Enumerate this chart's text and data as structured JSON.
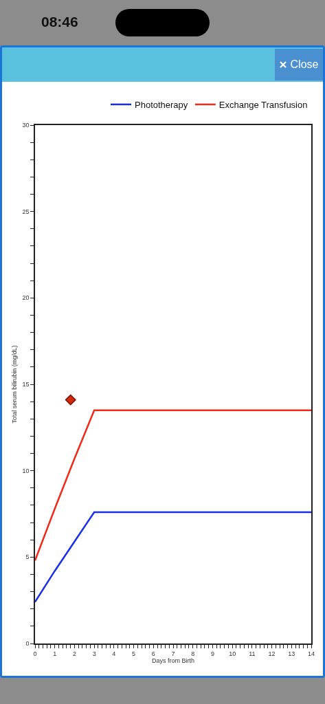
{
  "chart_data": {
    "type": "line",
    "xlabel": "Days from Birth",
    "ylabel": "Total serum bilirubin (mg/dL)",
    "annotations": [
      "08:46",
      "Close"
    ],
    "xlim": [
      0,
      14
    ],
    "ylim": [
      0,
      30
    ],
    "xticks": [
      0,
      {
        "value": 0.2,
        "label": null
      },
      {
        "value": 0.4,
        "label": null
      },
      {
        "value": 0.6,
        "label": null
      },
      {
        "value": 0.8,
        "label": null
      },
      1,
      {
        "value": 1.2,
        "label": null
      },
      {
        "value": 1.4,
        "label": null
      },
      {
        "value": 1.6,
        "label": null
      },
      {
        "value": 1.8,
        "label": null
      },
      2,
      {
        "value": 2.2,
        "label": null
      },
      {
        "value": 2.4,
        "label": null
      },
      {
        "value": 2.6,
        "label": null
      },
      {
        "value": 2.8,
        "label": null
      },
      3,
      {
        "value": 3.2,
        "label": null
      },
      {
        "value": 3.4,
        "label": null
      },
      {
        "value": 3.6,
        "label": null
      },
      {
        "value": 3.8,
        "label": null
      },
      4,
      {
        "value": 4.2,
        "label": null
      },
      {
        "value": 4.4,
        "label": null
      },
      {
        "value": 4.6,
        "label": null
      },
      {
        "value": 4.8,
        "label": null
      },
      5,
      {
        "value": 5.2,
        "label": null
      },
      {
        "value": 5.4,
        "label": null
      },
      {
        "value": 5.6,
        "label": null
      },
      {
        "value": 5.8,
        "label": null
      },
      6,
      {
        "value": 6.2,
        "label": null
      },
      {
        "value": 6.4,
        "label": null
      },
      {
        "value": 6.6,
        "label": null
      },
      {
        "value": 6.8,
        "label": null
      },
      7,
      {
        "value": 7.2,
        "label": null
      },
      {
        "value": 7.4,
        "label": null
      },
      {
        "value": 7.6,
        "label": null
      },
      {
        "value": 7.8,
        "label": null
      },
      8,
      {
        "value": 8.2,
        "label": null
      },
      {
        "value": 8.4,
        "label": null
      },
      {
        "value": 8.6,
        "label": null
      },
      {
        "value": 8.8,
        "label": null
      },
      9,
      {
        "value": 9.2,
        "label": null
      },
      {
        "value": 9.4,
        "label": null
      },
      {
        "value": 9.6,
        "label": null
      },
      {
        "value": 9.8,
        "label": null
      },
      10,
      {
        "value": 10.2,
        "label": null
      },
      {
        "value": 10.4,
        "label": null
      },
      {
        "value": 10.6,
        "label": null
      },
      {
        "value": 10.8,
        "label": null
      },
      11,
      {
        "value": 11.2,
        "label": null
      },
      {
        "value": 11.4,
        "label": null
      },
      {
        "value": 11.6,
        "label": null
      },
      {
        "value": 11.8,
        "label": null
      },
      12,
      {
        "value": 12.2,
        "label": null
      },
      {
        "value": 12.4,
        "label": null
      },
      {
        "value": 12.6,
        "label": null
      },
      {
        "value": 12.8,
        "label": null
      },
      13,
      {
        "value": 13.2,
        "label": null
      },
      {
        "value": 13.4,
        "label": null
      },
      {
        "value": 13.6,
        "label": null
      },
      {
        "value": 13.8,
        "label": null
      },
      14
    ],
    "yticks": [
      0,
      {
        "value": 1,
        "label": null
      },
      {
        "value": 2,
        "label": null
      },
      {
        "value": 3,
        "label": null
      },
      {
        "value": 4,
        "label": null
      },
      5,
      {
        "value": 6,
        "label": null
      },
      {
        "value": 7,
        "label": null
      },
      {
        "value": 8,
        "label": null
      },
      {
        "value": 9,
        "label": null
      },
      10,
      {
        "value": 11,
        "label": null
      },
      {
        "value": 12,
        "label": null
      },
      {
        "value": 13,
        "label": null
      },
      {
        "value": 14,
        "label": null
      },
      15,
      {
        "value": 16,
        "label": null
      },
      {
        "value": 17,
        "label": null
      },
      {
        "value": 18,
        "label": null
      },
      {
        "value": 19,
        "label": null
      },
      20,
      {
        "value": 21,
        "label": null
      },
      {
        "value": 22,
        "label": null
      },
      {
        "value": 23,
        "label": null
      },
      {
        "value": 24,
        "label": null
      },
      25,
      {
        "value": 26,
        "label": null
      },
      {
        "value": 27,
        "label": null
      },
      {
        "value": 28,
        "label": null
      },
      {
        "value": 29,
        "label": null
      },
      30
    ],
    "grid": false,
    "legend": "top right",
    "line_style": "solid",
    "series": [
      {
        "name": "Phototherapy",
        "color": "#1a2ee8",
        "x": [
          0,
          1,
          2,
          3,
          14
        ],
        "values": [
          2.4,
          4.2,
          5.9,
          7.6,
          7.6
        ]
      },
      {
        "name": "Exchange Transfusion",
        "color": "#f02a1a",
        "x": [
          0,
          1,
          2,
          3,
          14
        ],
        "values": [
          4.8,
          7.8,
          10.7,
          13.5,
          13.5
        ]
      },
      {
        "type": "scatter",
        "marker": "diamond",
        "color": "#d42a10",
        "x": [
          1.8
        ],
        "values": [
          14.1
        ]
      }
    ]
  }
}
